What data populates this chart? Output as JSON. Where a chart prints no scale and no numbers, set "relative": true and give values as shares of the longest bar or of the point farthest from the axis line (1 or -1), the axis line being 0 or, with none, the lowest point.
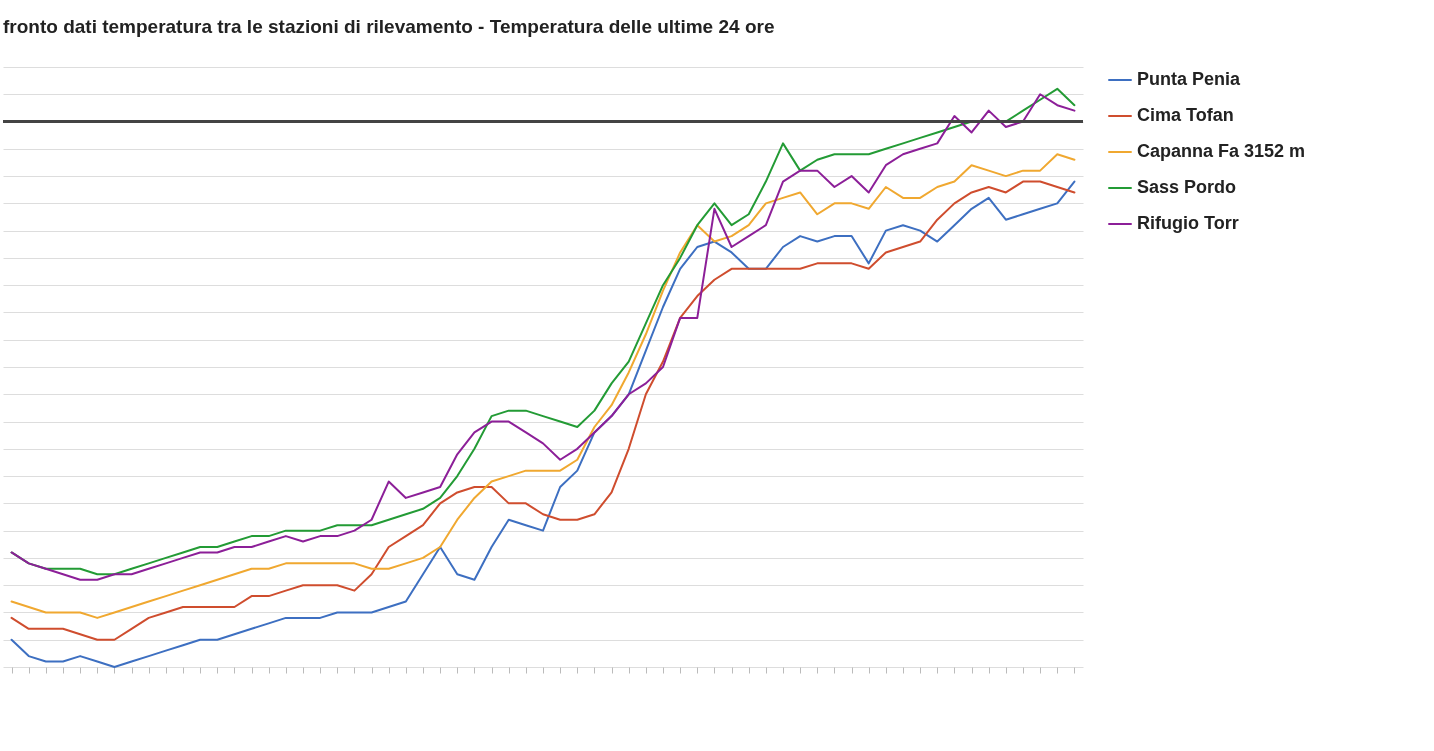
{
  "chart_data": {
    "type": "line",
    "title": "fronto dati temperatura tra le stazioni di rilevamento - Temperatura delle ultime 24 ore",
    "relative": true,
    "grid": "y",
    "legend": "right",
    "line_style": "solid",
    "categories": [
      null,
      null,
      null,
      null,
      null,
      null,
      null,
      null,
      null,
      null,
      null,
      null,
      null,
      null,
      null,
      null,
      null,
      null,
      null,
      null,
      null,
      null,
      null,
      null,
      null,
      null,
      null,
      null,
      null,
      null,
      null,
      null,
      null,
      null,
      null,
      null,
      null,
      null,
      null,
      null,
      null,
      null,
      null,
      null,
      null,
      null,
      null,
      null,
      null,
      null,
      null,
      null,
      null,
      null,
      null,
      null,
      null,
      null,
      null,
      null,
      null,
      null,
      null
    ],
    "series": [
      {
        "name": "Punta Penia",
        "color": "#3d6fc1",
        "values": [
          -0.95,
          -0.98,
          -0.99,
          -0.99,
          -0.98,
          -0.99,
          -1,
          -0.99,
          -0.98,
          -0.97,
          -0.96,
          -0.95,
          -0.95,
          -0.94,
          -0.93,
          -0.92,
          -0.91,
          -0.91,
          -0.91,
          -0.9,
          -0.9,
          -0.9,
          -0.89,
          -0.88,
          -0.83,
          -0.78,
          -0.83,
          -0.84,
          -0.78,
          -0.73,
          -0.74,
          -0.75,
          -0.67,
          -0.64,
          -0.57,
          -0.54,
          -0.5,
          -0.42,
          -0.34,
          -0.27,
          -0.23,
          -0.22,
          -0.24,
          -0.27,
          -0.27,
          -0.23,
          -0.21,
          -0.22,
          -0.21,
          -0.21,
          -0.26,
          -0.2,
          -0.19,
          -0.2,
          -0.22,
          -0.19,
          -0.16,
          -0.14,
          -0.18,
          -0.17,
          -0.16,
          -0.15,
          -0.11
        ]
      },
      {
        "name": "Cima Tofan",
        "color": "#cf4d2e",
        "values": [
          -0.91,
          -0.93,
          -0.93,
          -0.93,
          -0.94,
          -0.95,
          -0.95,
          -0.93,
          -0.91,
          -0.9,
          -0.89,
          -0.89,
          -0.89,
          -0.89,
          -0.87,
          -0.87,
          -0.86,
          -0.85,
          -0.85,
          -0.85,
          -0.86,
          -0.83,
          -0.78,
          -0.76,
          -0.74,
          -0.7,
          -0.68,
          -0.67,
          -0.67,
          -0.7,
          -0.7,
          -0.72,
          -0.73,
          -0.73,
          -0.72,
          -0.68,
          -0.6,
          -0.5,
          -0.44,
          -0.36,
          -0.32,
          -0.29,
          -0.27,
          -0.27,
          -0.27,
          -0.27,
          -0.27,
          -0.26,
          -0.26,
          -0.26,
          -0.27,
          -0.24,
          -0.23,
          -0.22,
          -0.18,
          -0.15,
          -0.13,
          -0.12,
          -0.13,
          -0.11,
          -0.11,
          -0.12,
          -0.13
        ]
      },
      {
        "name": "Capanna Fa 3152 m",
        "color": "#f0a830",
        "values": [
          -0.88,
          -0.89,
          -0.9,
          -0.9,
          -0.9,
          -0.91,
          -0.9,
          -0.89,
          -0.88,
          -0.87,
          -0.86,
          -0.85,
          -0.84,
          -0.83,
          -0.82,
          -0.82,
          -0.81,
          -0.81,
          -0.81,
          -0.81,
          -0.81,
          -0.82,
          -0.82,
          -0.81,
          -0.8,
          -0.78,
          -0.73,
          -0.69,
          -0.66,
          -0.65,
          -0.64,
          -0.64,
          -0.64,
          -0.62,
          -0.56,
          -0.52,
          -0.46,
          -0.39,
          -0.31,
          -0.24,
          -0.19,
          -0.22,
          -0.21,
          -0.19,
          -0.15,
          -0.14,
          -0.13,
          -0.17,
          -0.15,
          -0.15,
          -0.16,
          -0.12,
          -0.14,
          -0.14,
          -0.12,
          -0.11,
          -0.08,
          -0.09,
          -0.1,
          -0.09,
          -0.09,
          -0.06,
          -0.07
        ]
      },
      {
        "name": "Sass Pordo",
        "color": "#239b35",
        "values": [
          -0.79,
          -0.81,
          -0.82,
          -0.82,
          -0.82,
          -0.83,
          -0.83,
          -0.82,
          -0.81,
          -0.8,
          -0.79,
          -0.78,
          -0.78,
          -0.77,
          -0.76,
          -0.76,
          -0.75,
          -0.75,
          -0.75,
          -0.74,
          -0.74,
          -0.74,
          -0.73,
          -0.72,
          -0.71,
          -0.69,
          -0.65,
          -0.6,
          -0.54,
          -0.53,
          -0.53,
          -0.54,
          -0.55,
          -0.56,
          -0.53,
          -0.48,
          -0.44,
          -0.37,
          -0.3,
          -0.25,
          -0.19,
          -0.15,
          -0.19,
          -0.17,
          -0.11,
          -0.04,
          -0.09,
          -0.07,
          -0.06,
          -0.06,
          -0.06,
          -0.05,
          -0.04,
          -0.03,
          -0.02,
          -0.01,
          0,
          0,
          0,
          0.02,
          0.04,
          0.06,
          0.03
        ]
      },
      {
        "name": "Rifugio Torr",
        "color": "#8c1f98",
        "values": [
          -0.79,
          -0.81,
          -0.82,
          -0.83,
          -0.84,
          -0.84,
          -0.83,
          -0.83,
          -0.82,
          -0.81,
          -0.8,
          -0.79,
          -0.79,
          -0.78,
          -0.78,
          -0.77,
          -0.76,
          -0.77,
          -0.76,
          -0.76,
          -0.75,
          -0.73,
          -0.66,
          -0.69,
          -0.68,
          -0.67,
          -0.61,
          -0.57,
          -0.55,
          -0.55,
          -0.57,
          -0.59,
          -0.62,
          -0.6,
          -0.57,
          -0.54,
          -0.5,
          -0.48,
          -0.45,
          -0.36,
          -0.36,
          -0.16,
          -0.23,
          -0.21,
          -0.19,
          -0.11,
          -0.09,
          -0.09,
          -0.12,
          -0.1,
          -0.13,
          -0.08,
          -0.06,
          -0.05,
          -0.04,
          0.01,
          -0.02,
          0.02,
          -0.01,
          0,
          0.05,
          0.03,
          0.02
        ]
      }
    ]
  }
}
